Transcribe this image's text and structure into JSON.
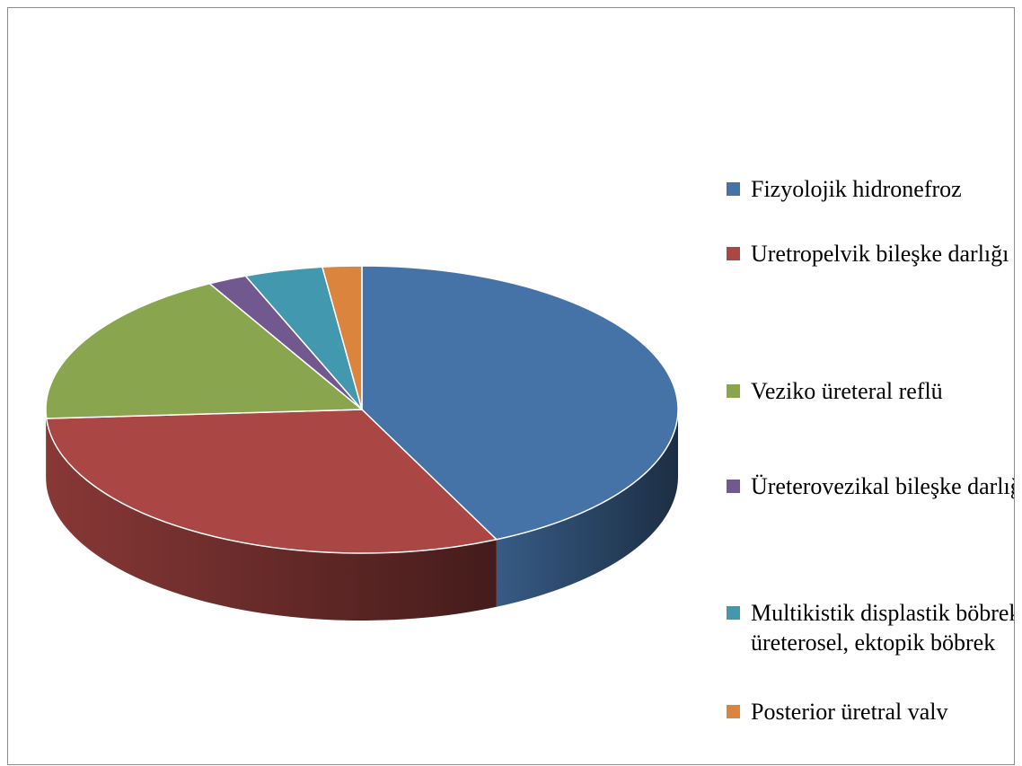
{
  "chart_data": {
    "type": "pie3d",
    "categories": [
      "Fizyolojik hidronefroz",
      "Uretropelvik bileşke darlığı",
      "Veziko üreteral reflü",
      "Üreterovezikal bileşke darlığı",
      "Multikistik displastik böbrek, üreterosel, ektopik böbrek",
      "Posterior üretral valv"
    ],
    "values": [
      43,
      31,
      18,
      2,
      4,
      2
    ],
    "colors": [
      "#4572A7",
      "#AA4643",
      "#89A54E",
      "#71588F",
      "#4198AF",
      "#DB843D"
    ],
    "legend": "right"
  }
}
